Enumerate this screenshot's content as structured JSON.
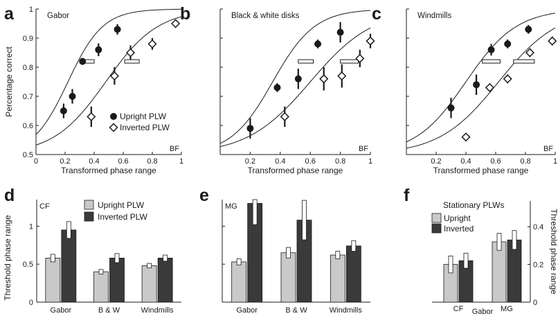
{
  "colors": {
    "axis": "#1a1a1a",
    "upright_bar": "#c9c9c9",
    "inverted_bar": "#3a3a3a",
    "marker": "#1a1a1a"
  },
  "chart_data": [
    {
      "panel": "a",
      "type": "scatter",
      "title": "Gabor",
      "corner": "BF",
      "xlabel": "Transformed phase range",
      "ylabel": "Percentage correct",
      "xlim": [
        0,
        1
      ],
      "ylim": [
        0.5,
        1
      ],
      "xticks": [
        "0",
        "0.2",
        "0.4",
        "0.6",
        "0.8",
        "1"
      ],
      "yticks": [
        "0.5",
        "0.6",
        "0.7",
        "0.8",
        "0.9",
        "1"
      ],
      "legend": [
        "Upright PLW",
        "Inverted PLW"
      ],
      "series": [
        {
          "name": "Upright PLW",
          "marker": "circle",
          "x": [
            0.19,
            0.25,
            0.32,
            0.43,
            0.56
          ],
          "y": [
            0.65,
            0.7,
            0.82,
            0.86,
            0.93
          ],
          "err": [
            0.025,
            0.025,
            0.012,
            0.022,
            0.018
          ],
          "threshold": {
            "x": 0.36,
            "y": 0.82,
            "halfwidth": 0.04
          }
        },
        {
          "name": "Inverted PLW",
          "marker": "diamond",
          "x": [
            0.38,
            0.54,
            0.65,
            0.8,
            0.96
          ],
          "y": [
            0.63,
            0.77,
            0.85,
            0.88,
            0.95
          ],
          "err": [
            0.035,
            0.03,
            0.025,
            0.02,
            0.01
          ],
          "threshold": {
            "x": 0.66,
            "y": 0.82,
            "halfwidth": 0.05
          }
        }
      ]
    },
    {
      "panel": "b",
      "type": "scatter",
      "title": "Black & white disks",
      "corner": "BF",
      "xlabel": "Transformed phase range",
      "xlim": [
        0,
        1
      ],
      "ylim": [
        0.5,
        1
      ],
      "xticks": [
        "0.2",
        "0.4",
        "0.6",
        "0.8",
        "1"
      ],
      "series": [
        {
          "name": "Upright PLW",
          "marker": "circle",
          "x": [
            0.2,
            0.38,
            0.52,
            0.65,
            0.8
          ],
          "y": [
            0.59,
            0.73,
            0.76,
            0.88,
            0.92
          ],
          "err": [
            0.035,
            0.015,
            0.035,
            0.015,
            0.035
          ],
          "threshold": {
            "x": 0.57,
            "y": 0.82,
            "halfwidth": 0.05
          }
        },
        {
          "name": "Inverted PLW",
          "marker": "diamond",
          "x": [
            0.43,
            0.69,
            0.81,
            0.93,
            1.0
          ],
          "y": [
            0.63,
            0.76,
            0.77,
            0.83,
            0.89
          ],
          "err": [
            0.035,
            0.04,
            0.04,
            0.03,
            0.025
          ],
          "threshold": {
            "x": 0.86,
            "y": 0.82,
            "halfwidth": 0.06
          }
        }
      ]
    },
    {
      "panel": "c",
      "type": "scatter",
      "title": "Windmills",
      "corner": "BF",
      "xlabel": "Transformed phase range",
      "xlim": [
        0,
        1
      ],
      "ylim": [
        0.5,
        1
      ],
      "xticks": [
        "0.2",
        "0.4",
        "0.6",
        "0.8",
        "1"
      ],
      "series": [
        {
          "name": "Upright PLW",
          "marker": "circle",
          "x": [
            0.3,
            0.47,
            0.57,
            0.68,
            0.82
          ],
          "y": [
            0.66,
            0.74,
            0.86,
            0.88,
            0.93
          ],
          "err": [
            0.035,
            0.035,
            0.02,
            0.015,
            0.015
          ],
          "threshold": {
            "x": 0.57,
            "y": 0.82,
            "halfwidth": 0.06
          }
        },
        {
          "name": "Inverted PLW",
          "marker": "diamond",
          "x": [
            0.4,
            0.56,
            0.68,
            0.83,
            0.98
          ],
          "y": [
            0.56,
            0.73,
            0.76,
            0.85,
            0.89
          ],
          "err": [
            0.0,
            0.0,
            0.015,
            0.015,
            0.015
          ],
          "threshold": {
            "x": 0.79,
            "y": 0.82,
            "halfwidth": 0.07
          }
        }
      ]
    },
    {
      "panel": "d",
      "type": "bar",
      "corner": "CF",
      "ylabel": "Threshold phase range",
      "ylim": [
        0,
        1.35
      ],
      "yticks": [
        "0",
        "0.5",
        "1"
      ],
      "categories": [
        "Gabor",
        "B & W",
        "Windmills"
      ],
      "legend": [
        "Upright PLW",
        "Inverted PLW"
      ],
      "series": [
        {
          "name": "Upright PLW",
          "values": [
            0.58,
            0.4,
            0.48
          ],
          "err": [
            0.05,
            0.03,
            0.03
          ]
        },
        {
          "name": "Inverted PLW",
          "values": [
            0.95,
            0.58,
            0.58
          ],
          "err": [
            0.11,
            0.06,
            0.04
          ]
        }
      ]
    },
    {
      "panel": "e",
      "type": "bar",
      "corner": "MG",
      "ylim": [
        0,
        1.35
      ],
      "yticks": [],
      "categories": [
        "Gabor",
        "B & W",
        "Windmills"
      ],
      "series": [
        {
          "name": "Upright PLW",
          "values": [
            0.53,
            0.65,
            0.62
          ],
          "err": [
            0.04,
            0.07,
            0.05
          ]
        },
        {
          "name": "Inverted PLW",
          "values": [
            1.3,
            1.08,
            0.74
          ],
          "err": [
            0.28,
            0.26,
            0.07
          ]
        }
      ]
    },
    {
      "panel": "f",
      "type": "bar",
      "title": "Stationary PLWs",
      "ylabel": "Threshold phase range",
      "ylim": [
        0,
        0.5
      ],
      "yticks": [
        "0",
        "0.2",
        "0.4"
      ],
      "categories": [
        "CF",
        "MG"
      ],
      "group_label": "Gabor",
      "legend": [
        "Upright",
        "Inverted"
      ],
      "series": [
        {
          "name": "Upright",
          "values": [
            0.2,
            0.32
          ],
          "err": [
            0.045,
            0.045
          ]
        },
        {
          "name": "Inverted",
          "values": [
            0.22,
            0.33
          ],
          "err": [
            0.04,
            0.05
          ]
        }
      ]
    }
  ]
}
